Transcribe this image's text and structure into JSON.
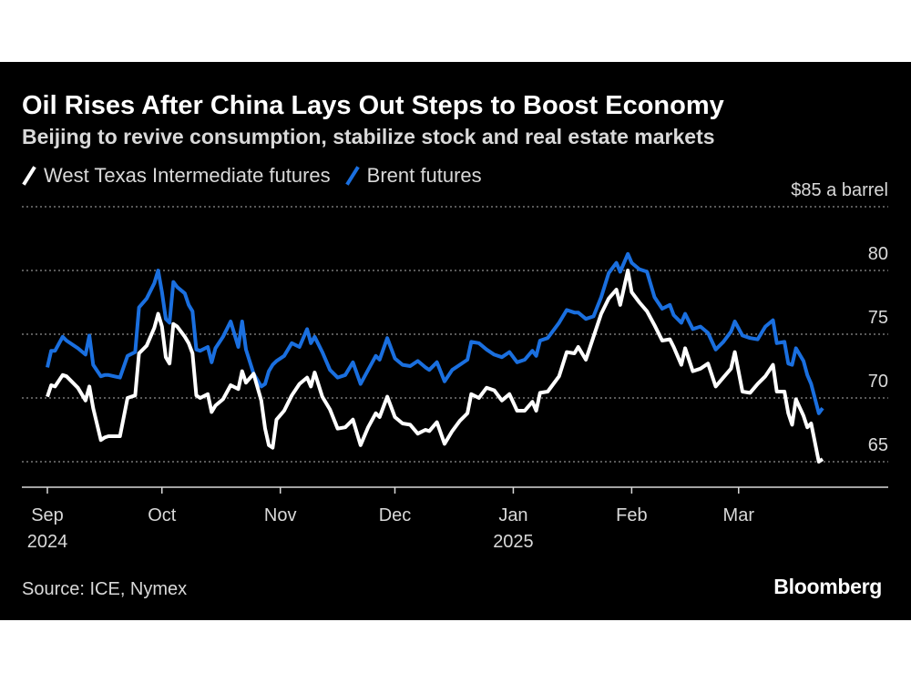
{
  "header": {
    "title": "Oil Rises After China Lays Out Steps to Boost Economy",
    "subtitle": "Beijing to revive consumption, stabilize stock and real estate markets"
  },
  "footer": {
    "source": "Source: ICE, Nymex",
    "logo": "Bloomberg"
  },
  "colors": {
    "background": "#000000",
    "wti": "#ffffff",
    "brent": "#1a6fdf",
    "grid": "#777777",
    "text": "#d9d9d9"
  },
  "chart_data": {
    "type": "line",
    "title": "Oil Rises After China Lays Out Steps to Boost Economy",
    "subtitle": "Beijing to revive consumption, stabilize stock and real estate markets",
    "legend_position": "top-left",
    "grid": true,
    "y_unit_label": "$85 a barrel",
    "ylim": [
      63,
      85
    ],
    "y_ticks": [
      {
        "value": 85,
        "label": "$85 a barrel"
      },
      {
        "value": 80,
        "label": "80"
      },
      {
        "value": 75,
        "label": "75"
      },
      {
        "value": 70,
        "label": "70"
      },
      {
        "value": 65,
        "label": "65"
      }
    ],
    "x_range": [
      "2024-09-01",
      "2025-03-23"
    ],
    "x_ticks": [
      {
        "date": "2024-09-01",
        "label": "Sep",
        "year": "2024"
      },
      {
        "date": "2024-10-01",
        "label": "Oct",
        "year": ""
      },
      {
        "date": "2024-11-01",
        "label": "Nov",
        "year": ""
      },
      {
        "date": "2024-12-01",
        "label": "Dec",
        "year": ""
      },
      {
        "date": "2025-01-01",
        "label": "Jan",
        "year": "2025"
      },
      {
        "date": "2025-02-01",
        "label": "Feb",
        "year": ""
      },
      {
        "date": "2025-03-01",
        "label": "Mar",
        "year": ""
      }
    ],
    "series": [
      {
        "name": "West Texas Intermediate futures",
        "color": "#ffffff",
        "points": [
          [
            "2024-09-01",
            70.1
          ],
          [
            "2024-09-02",
            71.0
          ],
          [
            "2024-09-03",
            70.9
          ],
          [
            "2024-09-05",
            71.8
          ],
          [
            "2024-09-06",
            71.7
          ],
          [
            "2024-09-09",
            70.8
          ],
          [
            "2024-09-11",
            69.8
          ],
          [
            "2024-09-12",
            70.9
          ],
          [
            "2024-09-13",
            69.2
          ],
          [
            "2024-09-15",
            66.7
          ],
          [
            "2024-09-16",
            66.9
          ],
          [
            "2024-09-17",
            67.0
          ],
          [
            "2024-09-20",
            67.0
          ],
          [
            "2024-09-22",
            70.0
          ],
          [
            "2024-09-24",
            70.2
          ],
          [
            "2024-09-25",
            73.5
          ],
          [
            "2024-09-27",
            74.1
          ],
          [
            "2024-09-29",
            75.5
          ],
          [
            "2024-09-30",
            76.6
          ],
          [
            "2024-10-01",
            75.6
          ],
          [
            "2024-10-02",
            73.2
          ],
          [
            "2024-10-03",
            72.7
          ],
          [
            "2024-10-04",
            75.8
          ],
          [
            "2024-10-05",
            75.6
          ],
          [
            "2024-10-07",
            74.8
          ],
          [
            "2024-10-08",
            74.3
          ],
          [
            "2024-10-09",
            73.5
          ],
          [
            "2024-10-10",
            70.2
          ],
          [
            "2024-10-11",
            70.0
          ],
          [
            "2024-10-13",
            70.3
          ],
          [
            "2024-10-14",
            68.9
          ],
          [
            "2024-10-15",
            69.4
          ],
          [
            "2024-10-17",
            69.9
          ],
          [
            "2024-10-19",
            71.0
          ],
          [
            "2024-10-21",
            70.7
          ],
          [
            "2024-10-22",
            72.1
          ],
          [
            "2024-10-23",
            71.2
          ],
          [
            "2024-10-25",
            71.9
          ],
          [
            "2024-10-27",
            69.8
          ],
          [
            "2024-10-28",
            67.6
          ],
          [
            "2024-10-29",
            66.3
          ],
          [
            "2024-10-30",
            66.1
          ],
          [
            "2024-10-31",
            68.3
          ],
          [
            "2024-11-02",
            69.0
          ],
          [
            "2024-11-04",
            70.2
          ],
          [
            "2024-11-06",
            71.1
          ],
          [
            "2024-11-08",
            71.6
          ],
          [
            "2024-11-09",
            70.9
          ],
          [
            "2024-11-10",
            72.0
          ],
          [
            "2024-11-12",
            70.1
          ],
          [
            "2024-11-14",
            69.1
          ],
          [
            "2024-11-16",
            67.6
          ],
          [
            "2024-11-18",
            67.7
          ],
          [
            "2024-11-20",
            68.3
          ],
          [
            "2024-11-22",
            66.3
          ],
          [
            "2024-11-24",
            67.7
          ],
          [
            "2024-11-26",
            68.8
          ],
          [
            "2024-11-27",
            68.5
          ],
          [
            "2024-11-29",
            70.1
          ],
          [
            "2024-12-01",
            68.5
          ],
          [
            "2024-12-03",
            68.0
          ],
          [
            "2024-12-05",
            67.9
          ],
          [
            "2024-12-07",
            67.2
          ],
          [
            "2024-12-09",
            67.5
          ],
          [
            "2024-12-10",
            67.4
          ],
          [
            "2024-12-12",
            68.1
          ],
          [
            "2024-12-14",
            66.4
          ],
          [
            "2024-12-16",
            67.4
          ],
          [
            "2024-12-18",
            68.2
          ],
          [
            "2024-12-20",
            68.8
          ],
          [
            "2024-12-21",
            70.3
          ],
          [
            "2024-12-23",
            70.0
          ],
          [
            "2024-12-25",
            70.8
          ],
          [
            "2024-12-27",
            70.6
          ],
          [
            "2024-12-29",
            69.8
          ],
          [
            "2024-12-31",
            70.3
          ],
          [
            "2025-01-02",
            69.0
          ],
          [
            "2025-01-04",
            69.0
          ],
          [
            "2025-01-06",
            69.7
          ],
          [
            "2025-01-07",
            69.0
          ],
          [
            "2025-01-08",
            70.4
          ],
          [
            "2025-01-10",
            70.5
          ],
          [
            "2025-01-13",
            71.7
          ],
          [
            "2025-01-15",
            73.6
          ],
          [
            "2025-01-17",
            73.5
          ],
          [
            "2025-01-18",
            74.0
          ],
          [
            "2025-01-20",
            73.0
          ],
          [
            "2025-01-22",
            74.8
          ],
          [
            "2025-01-24",
            76.6
          ],
          [
            "2025-01-26",
            77.8
          ],
          [
            "2025-01-28",
            78.5
          ],
          [
            "2025-01-29",
            77.3
          ],
          [
            "2025-01-31",
            80.0
          ],
          [
            "2025-02-01",
            78.3
          ],
          [
            "2025-02-03",
            77.5
          ],
          [
            "2025-02-05",
            76.8
          ],
          [
            "2025-02-07",
            75.7
          ],
          [
            "2025-02-09",
            74.5
          ],
          [
            "2025-02-11",
            74.6
          ],
          [
            "2025-02-12",
            74.0
          ],
          [
            "2025-02-14",
            72.6
          ],
          [
            "2025-02-15",
            73.9
          ],
          [
            "2025-02-17",
            72.1
          ],
          [
            "2025-02-19",
            72.3
          ],
          [
            "2025-02-21",
            72.7
          ],
          [
            "2025-02-23",
            70.9
          ],
          [
            "2025-02-25",
            71.6
          ],
          [
            "2025-02-27",
            72.3
          ],
          [
            "2025-02-28",
            73.6
          ],
          [
            "2025-03-02",
            70.5
          ],
          [
            "2025-03-04",
            70.4
          ],
          [
            "2025-03-06",
            71.1
          ],
          [
            "2025-03-08",
            71.7
          ],
          [
            "2025-03-10",
            72.6
          ],
          [
            "2025-03-11",
            70.5
          ],
          [
            "2025-03-13",
            70.5
          ],
          [
            "2025-03-14",
            68.8
          ],
          [
            "2025-03-15",
            67.9
          ],
          [
            "2025-03-16",
            69.9
          ],
          [
            "2025-03-18",
            68.6
          ],
          [
            "2025-03-19",
            67.7
          ],
          [
            "2025-03-20",
            68.0
          ],
          [
            "2025-03-22",
            65.0
          ],
          [
            "2025-03-23",
            65.2
          ]
        ]
      },
      {
        "name": "Brent futures",
        "color": "#1a6fdf",
        "points": [
          [
            "2024-09-01",
            72.4
          ],
          [
            "2024-09-02",
            73.7
          ],
          [
            "2024-09-03",
            73.7
          ],
          [
            "2024-09-05",
            74.8
          ],
          [
            "2024-09-06",
            74.5
          ],
          [
            "2024-09-09",
            73.9
          ],
          [
            "2024-09-11",
            73.4
          ],
          [
            "2024-09-12",
            74.9
          ],
          [
            "2024-09-13",
            72.6
          ],
          [
            "2024-09-15",
            71.7
          ],
          [
            "2024-09-16",
            71.8
          ],
          [
            "2024-09-17",
            71.8
          ],
          [
            "2024-09-20",
            71.6
          ],
          [
            "2024-09-22",
            73.3
          ],
          [
            "2024-09-24",
            73.6
          ],
          [
            "2024-09-25",
            77.1
          ],
          [
            "2024-09-27",
            77.8
          ],
          [
            "2024-09-29",
            79.0
          ],
          [
            "2024-09-30",
            80.0
          ],
          [
            "2024-10-01",
            78.3
          ],
          [
            "2024-10-02",
            76.2
          ],
          [
            "2024-10-03",
            75.9
          ],
          [
            "2024-10-04",
            79.1
          ],
          [
            "2024-10-05",
            78.7
          ],
          [
            "2024-10-07",
            78.2
          ],
          [
            "2024-10-08",
            77.3
          ],
          [
            "2024-10-09",
            76.8
          ],
          [
            "2024-10-10",
            73.8
          ],
          [
            "2024-10-11",
            73.7
          ],
          [
            "2024-10-13",
            74.0
          ],
          [
            "2024-10-14",
            72.8
          ],
          [
            "2024-10-15",
            73.9
          ],
          [
            "2024-10-17",
            74.8
          ],
          [
            "2024-10-19",
            76.0
          ],
          [
            "2024-10-21",
            74.0
          ],
          [
            "2024-10-22",
            76.0
          ],
          [
            "2024-10-23",
            73.8
          ],
          [
            "2024-10-25",
            71.9
          ],
          [
            "2024-10-27",
            70.9
          ],
          [
            "2024-10-28",
            71.1
          ],
          [
            "2024-10-29",
            72.1
          ],
          [
            "2024-10-30",
            72.6
          ],
          [
            "2024-10-31",
            72.9
          ],
          [
            "2024-11-02",
            73.3
          ],
          [
            "2024-11-04",
            74.3
          ],
          [
            "2024-11-06",
            74.0
          ],
          [
            "2024-11-08",
            75.4
          ],
          [
            "2024-11-09",
            74.3
          ],
          [
            "2024-11-10",
            74.8
          ],
          [
            "2024-11-12",
            73.6
          ],
          [
            "2024-11-14",
            72.2
          ],
          [
            "2024-11-16",
            71.6
          ],
          [
            "2024-11-18",
            71.8
          ],
          [
            "2024-11-20",
            72.8
          ],
          [
            "2024-11-22",
            71.1
          ],
          [
            "2024-11-24",
            72.2
          ],
          [
            "2024-11-26",
            73.3
          ],
          [
            "2024-11-27",
            73.0
          ],
          [
            "2024-11-29",
            74.7
          ],
          [
            "2024-12-01",
            73.1
          ],
          [
            "2024-12-03",
            72.6
          ],
          [
            "2024-12-05",
            72.5
          ],
          [
            "2024-12-07",
            72.9
          ],
          [
            "2024-12-09",
            72.4
          ],
          [
            "2024-12-10",
            72.2
          ],
          [
            "2024-12-12",
            72.8
          ],
          [
            "2024-12-14",
            71.3
          ],
          [
            "2024-12-16",
            72.2
          ],
          [
            "2024-12-18",
            72.6
          ],
          [
            "2024-12-20",
            73.0
          ],
          [
            "2024-12-21",
            74.4
          ],
          [
            "2024-12-23",
            74.3
          ],
          [
            "2024-12-25",
            73.8
          ],
          [
            "2024-12-27",
            73.4
          ],
          [
            "2024-12-29",
            73.2
          ],
          [
            "2024-12-31",
            73.6
          ],
          [
            "2025-01-02",
            72.8
          ],
          [
            "2025-01-04",
            73.0
          ],
          [
            "2025-01-06",
            73.7
          ],
          [
            "2025-01-07",
            73.3
          ],
          [
            "2025-01-08",
            74.5
          ],
          [
            "2025-01-10",
            74.7
          ],
          [
            "2025-01-13",
            75.9
          ],
          [
            "2025-01-15",
            76.9
          ],
          [
            "2025-01-17",
            76.7
          ],
          [
            "2025-01-18",
            76.7
          ],
          [
            "2025-01-20",
            76.2
          ],
          [
            "2025-01-22",
            76.4
          ],
          [
            "2025-01-24",
            77.9
          ],
          [
            "2025-01-26",
            79.8
          ],
          [
            "2025-01-28",
            80.6
          ],
          [
            "2025-01-29",
            79.9
          ],
          [
            "2025-01-31",
            81.3
          ],
          [
            "2025-02-01",
            80.6
          ],
          [
            "2025-02-03",
            80.1
          ],
          [
            "2025-02-05",
            79.9
          ],
          [
            "2025-02-07",
            77.9
          ],
          [
            "2025-02-09",
            77.0
          ],
          [
            "2025-02-11",
            77.3
          ],
          [
            "2025-02-12",
            76.5
          ],
          [
            "2025-02-14",
            75.9
          ],
          [
            "2025-02-15",
            76.6
          ],
          [
            "2025-02-17",
            75.4
          ],
          [
            "2025-02-19",
            75.6
          ],
          [
            "2025-02-21",
            75.1
          ],
          [
            "2025-02-23",
            73.8
          ],
          [
            "2025-02-25",
            74.4
          ],
          [
            "2025-02-27",
            75.2
          ],
          [
            "2025-02-28",
            76.0
          ],
          [
            "2025-03-02",
            74.9
          ],
          [
            "2025-03-04",
            74.7
          ],
          [
            "2025-03-06",
            74.6
          ],
          [
            "2025-03-08",
            75.6
          ],
          [
            "2025-03-10",
            76.1
          ],
          [
            "2025-03-11",
            74.3
          ],
          [
            "2025-03-13",
            74.4
          ],
          [
            "2025-03-14",
            72.7
          ],
          [
            "2025-03-15",
            72.6
          ],
          [
            "2025-03-16",
            73.9
          ],
          [
            "2025-03-18",
            72.9
          ],
          [
            "2025-03-19",
            71.8
          ],
          [
            "2025-03-20",
            71.1
          ],
          [
            "2025-03-22",
            68.8
          ],
          [
            "2025-03-23",
            69.2
          ]
        ]
      }
    ]
  }
}
